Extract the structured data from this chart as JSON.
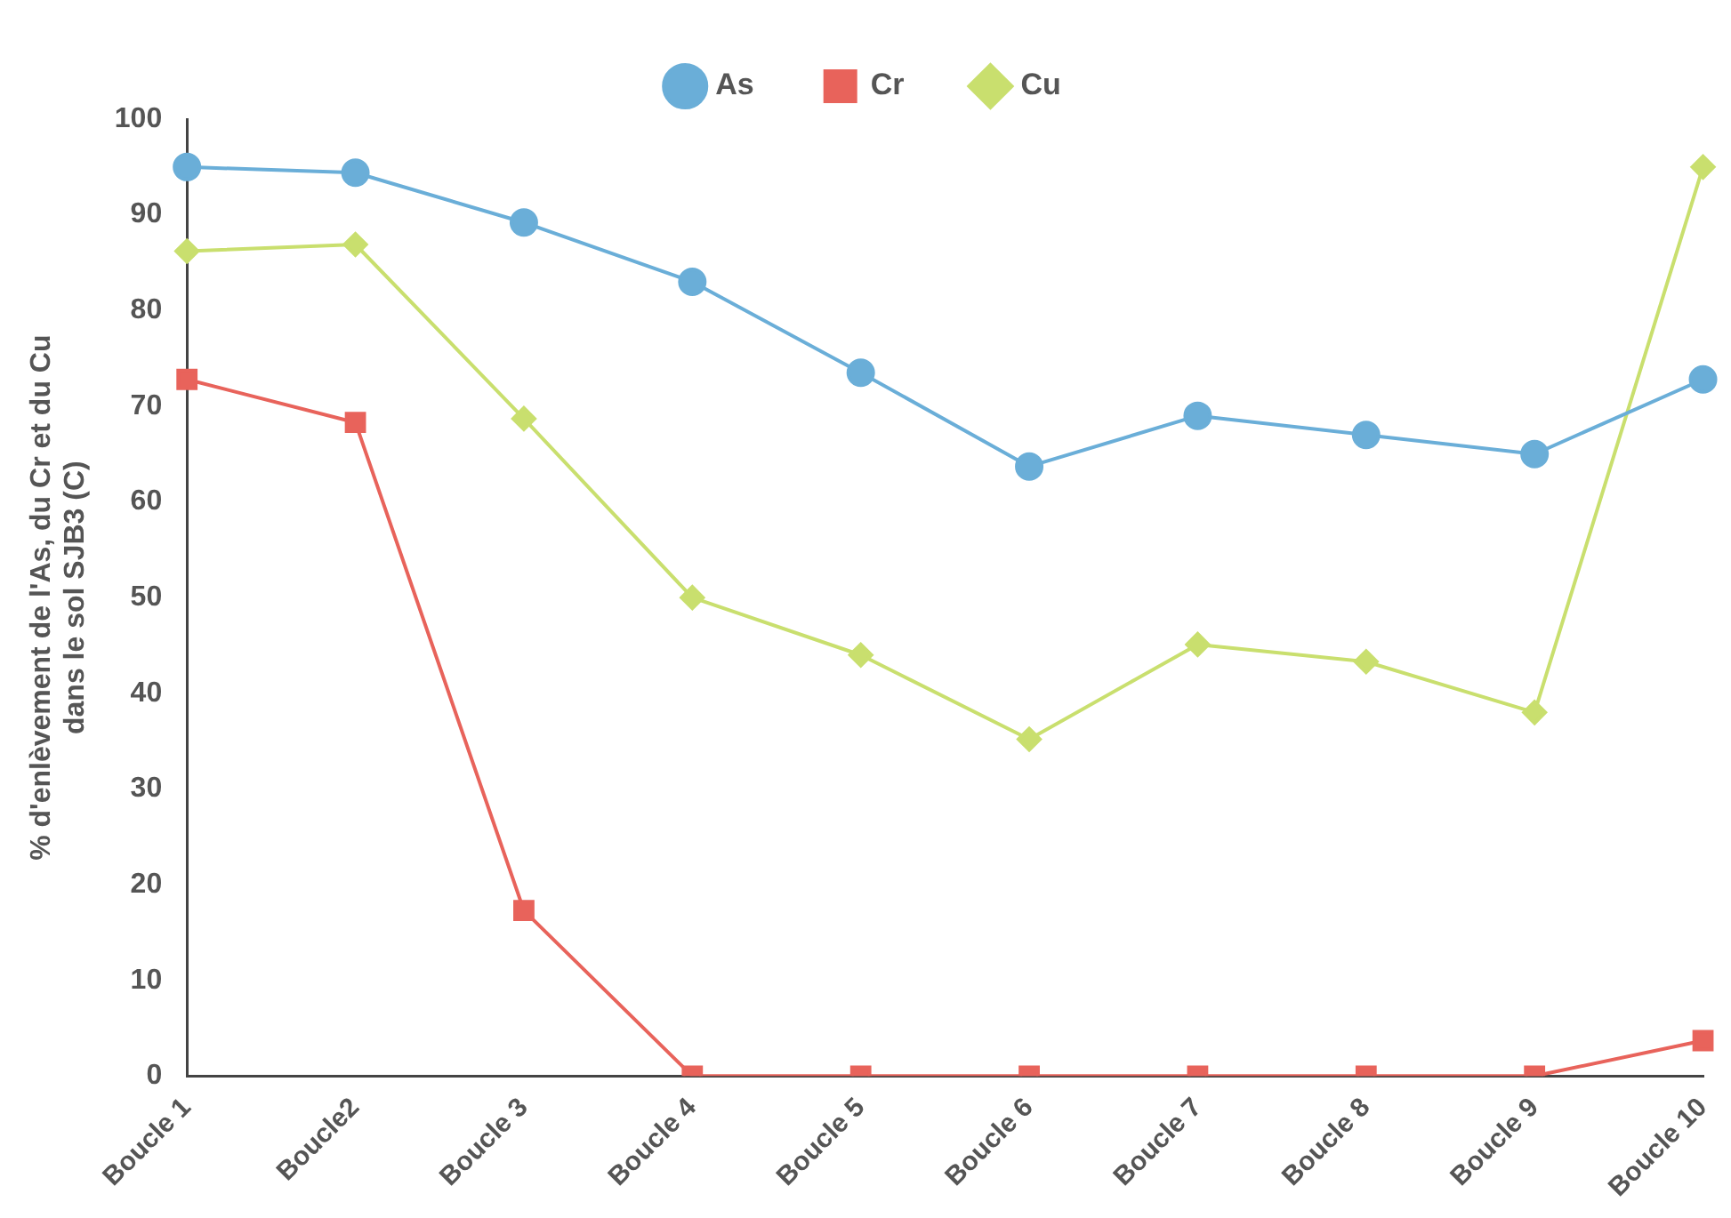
{
  "chart_data": {
    "type": "line",
    "ylabel": "% d'enlèvement de l'As, du Cr et du Cu\ndans le sol SJB3 (C)",
    "categories": [
      "Boucle 1",
      "Boucle2",
      "Boucle 3",
      "Boucle 4",
      "Boucle 5",
      "Boucle 6",
      "Boucle 7",
      "Boucle 8",
      "Boucle 9",
      "Boucle 10"
    ],
    "series": [
      {
        "name": "As",
        "color": "#6aaed8",
        "marker": "circle",
        "values": [
          95,
          94.4,
          89.2,
          83,
          73.5,
          63.7,
          69,
          67,
          65,
          72.8
        ]
      },
      {
        "name": "Cr",
        "color": "#e8635b",
        "marker": "square",
        "values": [
          72.8,
          68.3,
          17.3,
          0,
          0,
          0,
          0,
          0,
          0,
          3.7
        ]
      },
      {
        "name": "Cu",
        "color": "#c9df6e",
        "marker": "diamond",
        "values": [
          86.2,
          86.9,
          68.7,
          50,
          44,
          35.2,
          45.1,
          43.3,
          38,
          95
        ]
      }
    ],
    "ylim": [
      0,
      100
    ],
    "yticks": [
      0,
      10,
      20,
      30,
      40,
      50,
      60,
      70,
      80,
      90,
      100
    ],
    "grid": false,
    "legend": "top"
  }
}
